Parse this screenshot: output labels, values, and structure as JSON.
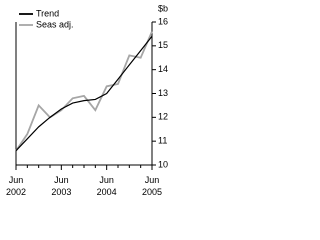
{
  "chart_data": {
    "type": "line",
    "y_label": "$b",
    "categories": [
      "Jun 2002",
      null,
      null,
      null,
      "Jun 2003",
      null,
      null,
      null,
      "Jun 2004",
      null,
      null,
      null,
      "Jun 2005"
    ],
    "series": [
      {
        "name": "Trend",
        "color": "#000000",
        "values": [
          10.6,
          11.1,
          11.6,
          12.0,
          12.35,
          12.6,
          12.7,
          12.75,
          13.0,
          13.6,
          14.2,
          14.8,
          15.4
        ]
      },
      {
        "name": "Seas adj.",
        "color": "#a6a6a6",
        "values": [
          10.6,
          11.3,
          12.5,
          12.0,
          12.3,
          12.8,
          12.9,
          12.3,
          13.3,
          13.4,
          14.6,
          14.5,
          15.6
        ]
      }
    ],
    "ylim": [
      10,
      16
    ],
    "yticks": [
      10,
      11,
      12,
      13,
      14,
      15,
      16
    ],
    "legend": "top-left",
    "grid": false
  }
}
